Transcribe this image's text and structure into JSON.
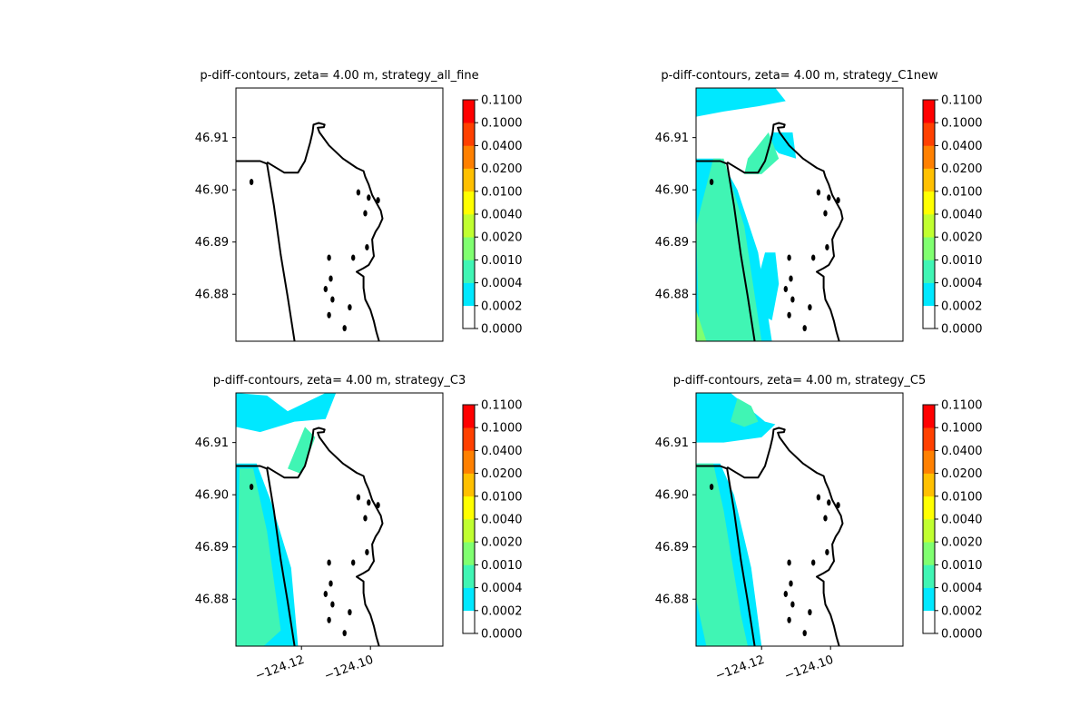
{
  "chart_data": [
    {
      "type": "heatmap",
      "title": "p-diff-contours, zeta= 4.00 m, strategy_all_fine",
      "ylabel": "",
      "xlabel": "",
      "yticks": [
        "46.91",
        "46.90",
        "46.89",
        "46.88"
      ],
      "ytick_values": [
        46.91,
        46.9,
        46.89,
        46.88
      ],
      "xticks": [],
      "xtick_values": [],
      "xlim": [
        -124.139,
        -124.079
      ],
      "ylim": [
        46.871,
        46.9195
      ],
      "filled_regions": []
    },
    {
      "type": "heatmap",
      "title": "p-diff-contours, zeta= 4.00 m, strategy_C1new",
      "ylabel": "",
      "xlabel": "",
      "yticks": [
        "46.91",
        "46.90",
        "46.89",
        "46.88"
      ],
      "ytick_values": [
        46.91,
        46.9,
        46.89,
        46.88
      ],
      "xticks": [],
      "xtick_values": [],
      "xlim": [
        -124.139,
        -124.079
      ],
      "ylim": [
        46.871,
        46.9195
      ],
      "filled_regions": [
        {
          "level": 1,
          "points": [
            [
              -124.139,
              46.9195
            ],
            [
              -124.116,
              46.9195
            ],
            [
              -124.113,
              46.917
            ],
            [
              -124.121,
              46.916
            ],
            [
              -124.131,
              46.915
            ],
            [
              -124.139,
              46.914
            ]
          ]
        },
        {
          "level": 1,
          "points": [
            [
              -124.117,
              46.911
            ],
            [
              -124.111,
              46.911
            ],
            [
              -124.11,
              46.906
            ],
            [
              -124.115,
              46.907
            ],
            [
              -124.118,
              46.909
            ]
          ]
        },
        {
          "level": 1,
          "points": [
            [
              -124.139,
              46.906
            ],
            [
              -124.132,
              46.906
            ],
            [
              -124.127,
              46.9
            ],
            [
              -124.121,
              46.888
            ],
            [
              -124.117,
              46.871
            ],
            [
              -124.139,
              46.871
            ]
          ]
        },
        {
          "level": 1,
          "points": [
            [
              -124.119,
              46.888
            ],
            [
              -124.116,
              46.888
            ],
            [
              -124.115,
              46.882
            ],
            [
              -124.117,
              46.875
            ],
            [
              -124.12,
              46.876
            ],
            [
              -124.121,
              46.883
            ]
          ]
        },
        {
          "level": 2,
          "points": [
            [
              -124.134,
              46.906
            ],
            [
              -124.131,
              46.906
            ],
            [
              -124.125,
              46.893
            ],
            [
              -124.12,
              46.871
            ],
            [
              -124.138,
              46.871
            ],
            [
              -124.139,
              46.893
            ]
          ]
        },
        {
          "level": 2,
          "points": [
            [
              -124.124,
              46.906
            ],
            [
              -124.118,
              46.911
            ],
            [
              -124.115,
              46.906
            ],
            [
              -124.12,
              46.903
            ],
            [
              -124.125,
              46.903
            ]
          ]
        },
        {
          "level": 3,
          "points": [
            [
              -124.139,
              46.877
            ],
            [
              -124.137,
              46.873
            ],
            [
              -124.136,
              46.871
            ],
            [
              -124.139,
              46.871
            ]
          ]
        }
      ]
    },
    {
      "type": "heatmap",
      "title": "p-diff-contours, zeta= 4.00 m, strategy_C3",
      "ylabel": "",
      "xlabel": "",
      "yticks": [
        "46.91",
        "46.90",
        "46.89",
        "46.88"
      ],
      "ytick_values": [
        46.91,
        46.9,
        46.89,
        46.88
      ],
      "xticks": [
        "−124.12",
        "−124.10"
      ],
      "xtick_values": [
        -124.12,
        -124.1
      ],
      "xlim": [
        -124.139,
        -124.079
      ],
      "ylim": [
        46.871,
        46.9195
      ],
      "filled_regions": [
        {
          "level": 1,
          "points": [
            [
              -124.139,
              46.9195
            ],
            [
              -124.13,
              46.919
            ],
            [
              -124.124,
              46.916
            ],
            [
              -124.113,
              46.9195
            ],
            [
              -124.11,
              46.9195
            ],
            [
              -124.113,
              46.9145
            ],
            [
              -124.122,
              46.914
            ],
            [
              -124.132,
              46.912
            ],
            [
              -124.139,
              46.913
            ]
          ]
        },
        {
          "level": 1,
          "points": [
            [
              -124.139,
              46.906
            ],
            [
              -124.133,
              46.906
            ],
            [
              -124.129,
              46.899
            ],
            [
              -124.123,
              46.886
            ],
            [
              -124.121,
              46.871
            ],
            [
              -124.139,
              46.871
            ]
          ]
        },
        {
          "level": 2,
          "points": [
            [
              -124.138,
              46.905
            ],
            [
              -124.134,
              46.905
            ],
            [
              -124.13,
              46.893
            ],
            [
              -124.126,
              46.874
            ],
            [
              -124.131,
              46.871
            ],
            [
              -124.139,
              46.871
            ]
          ]
        },
        {
          "level": 2,
          "points": [
            [
              -124.124,
              46.905
            ],
            [
              -124.119,
              46.913
            ],
            [
              -124.116,
              46.911
            ],
            [
              -124.12,
              46.904
            ]
          ]
        }
      ]
    },
    {
      "type": "heatmap",
      "title": "p-diff-contours, zeta= 4.00 m, strategy_C5",
      "ylabel": "",
      "xlabel": "",
      "yticks": [
        "46.91",
        "46.90",
        "46.89",
        "46.88"
      ],
      "ytick_values": [
        46.91,
        46.9,
        46.89,
        46.88
      ],
      "xticks": [
        "−124.12",
        "−124.10"
      ],
      "xtick_values": [
        -124.12,
        -124.1
      ],
      "xlim": [
        -124.139,
        -124.079
      ],
      "ylim": [
        46.871,
        46.9195
      ],
      "filled_regions": [
        {
          "level": 1,
          "points": [
            [
              -124.139,
              46.9195
            ],
            [
              -124.129,
              46.9195
            ],
            [
              -124.119,
              46.914
            ],
            [
              -124.116,
              46.9135
            ],
            [
              -124.12,
              46.911
            ],
            [
              -124.131,
              46.91
            ],
            [
              -124.139,
              46.91
            ]
          ]
        },
        {
          "level": 1,
          "points": [
            [
              -124.139,
              46.906
            ],
            [
              -124.132,
              46.906
            ],
            [
              -124.128,
              46.9
            ],
            [
              -124.123,
              46.886
            ],
            [
              -124.12,
              46.871
            ],
            [
              -124.139,
              46.871
            ]
          ]
        },
        {
          "level": 2,
          "points": [
            [
              -124.139,
              46.906
            ],
            [
              -124.134,
              46.906
            ],
            [
              -124.131,
              46.897
            ],
            [
              -124.126,
              46.877
            ],
            [
              -124.124,
              46.871
            ],
            [
              -124.136,
              46.871
            ],
            [
              -124.139,
              46.88
            ]
          ]
        },
        {
          "level": 2,
          "points": [
            [
              -124.127,
              46.9185
            ],
            [
              -124.123,
              46.917
            ],
            [
              -124.121,
              46.914
            ],
            [
              -124.125,
              46.913
            ],
            [
              -124.129,
              46.914
            ]
          ]
        }
      ]
    }
  ],
  "colorbar": {
    "ticks": [
      "0.0000",
      "0.0002",
      "0.0004",
      "0.0010",
      "0.0020",
      "0.0040",
      "0.0100",
      "0.0200",
      "0.0400",
      "0.1000",
      "0.1100"
    ],
    "colors": [
      "#ffffff",
      "#00e8ff",
      "#40f5b4",
      "#80ff70",
      "#c0ff30",
      "#ffff00",
      "#ffc000",
      "#ff8000",
      "#ff4000",
      "#ff0000"
    ]
  },
  "map": {
    "coastline_color": "#000000",
    "coast_east": [
      [
        -124.13,
        46.9053
      ],
      [
        -124.128,
        46.9045
      ],
      [
        -124.125,
        46.9033
      ],
      [
        -124.121,
        46.9033
      ],
      [
        -124.119,
        46.9055
      ],
      [
        -124.1175,
        46.909
      ],
      [
        -124.1168,
        46.911
      ],
      [
        -124.1165,
        46.9125
      ],
      [
        -124.115,
        46.9128
      ],
      [
        -124.1133,
        46.9125
      ],
      [
        -124.1135,
        46.912
      ],
      [
        -124.1153,
        46.9119
      ],
      [
        -124.1148,
        46.911
      ],
      [
        -124.112,
        46.9085
      ],
      [
        -124.108,
        46.906
      ],
      [
        -124.104,
        46.9042
      ],
      [
        -124.102,
        46.9036
      ],
      [
        -124.1015,
        46.9025
      ],
      [
        -124.1005,
        46.901
      ],
      [
        -124.0995,
        46.899
      ],
      [
        -124.098,
        46.8972
      ],
      [
        -124.097,
        46.896
      ],
      [
        -124.0965,
        46.8945
      ],
      [
        -124.0975,
        46.893
      ],
      [
        -124.0985,
        46.892
      ],
      [
        -124.0995,
        46.8905
      ],
      [
        -124.0993,
        46.8888
      ],
      [
        -124.099,
        46.8873
      ],
      [
        -124.1005,
        46.8856
      ],
      [
        -124.102,
        46.885
      ],
      [
        -124.104,
        46.8843
      ],
      [
        -124.102,
        46.8834
      ],
      [
        -124.102,
        46.8812
      ],
      [
        -124.1015,
        46.879
      ],
      [
        -124.1,
        46.877
      ],
      [
        -124.099,
        46.8748
      ],
      [
        -124.0983,
        46.8728
      ],
      [
        -124.0975,
        46.871
      ]
    ],
    "coast_spit": [
      [
        -124.139,
        46.9055
      ],
      [
        -124.132,
        46.9055
      ],
      [
        -124.13,
        46.905
      ],
      [
        -124.128,
        46.897
      ],
      [
        -124.126,
        46.8875
      ],
      [
        -124.124,
        46.8795
      ],
      [
        -124.122,
        46.871
      ]
    ],
    "islands": [
      [
        -124.1345,
        46.9015
      ],
      [
        -124.1035,
        46.8995
      ],
      [
        -124.1005,
        46.8985
      ],
      [
        -124.1015,
        46.8955
      ],
      [
        -124.0978,
        46.898
      ],
      [
        -124.101,
        46.889
      ],
      [
        -124.105,
        46.887
      ],
      [
        -124.112,
        46.887
      ],
      [
        -124.1115,
        46.883
      ],
      [
        -124.113,
        46.881
      ],
      [
        -124.111,
        46.879
      ],
      [
        -124.112,
        46.876
      ],
      [
        -124.106,
        46.8775
      ],
      [
        -124.1075,
        46.8735
      ]
    ]
  }
}
